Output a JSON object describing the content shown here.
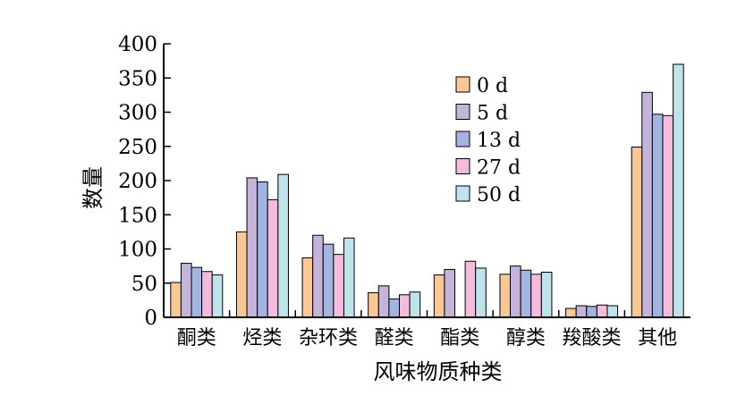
{
  "chart_data": {
    "type": "bar",
    "xlabel": "风味物质种类",
    "ylabel": "数量",
    "ylim": [
      0,
      400
    ],
    "yticks": [
      0,
      50,
      100,
      150,
      200,
      250,
      300,
      350,
      400
    ],
    "grid": false,
    "legend_position": "top-center",
    "categories": [
      "酮类",
      "烃类",
      "杂环类",
      "醛类",
      "酯类",
      "醇类",
      "羧酸类",
      "其他"
    ],
    "series": [
      {
        "name": "0 d",
        "color": "#FAC896",
        "values": [
          51,
          125,
          87,
          36,
          62,
          63,
          13,
          249
        ]
      },
      {
        "name": "5 d",
        "color": "#C4B4DA",
        "values": [
          79,
          204,
          120,
          46,
          70,
          75,
          17,
          329
        ]
      },
      {
        "name": "13 d",
        "color": "#A4B4E0",
        "values": [
          73,
          198,
          107,
          27,
          null,
          69,
          16,
          297
        ]
      },
      {
        "name": "27 d",
        "color": "#F4BCDC",
        "values": [
          67,
          172,
          92,
          33,
          82,
          63,
          18,
          295
        ]
      },
      {
        "name": "50 d",
        "color": "#BFE3EA",
        "values": [
          62,
          209,
          116,
          37,
          72,
          66,
          17,
          370
        ]
      }
    ]
  }
}
